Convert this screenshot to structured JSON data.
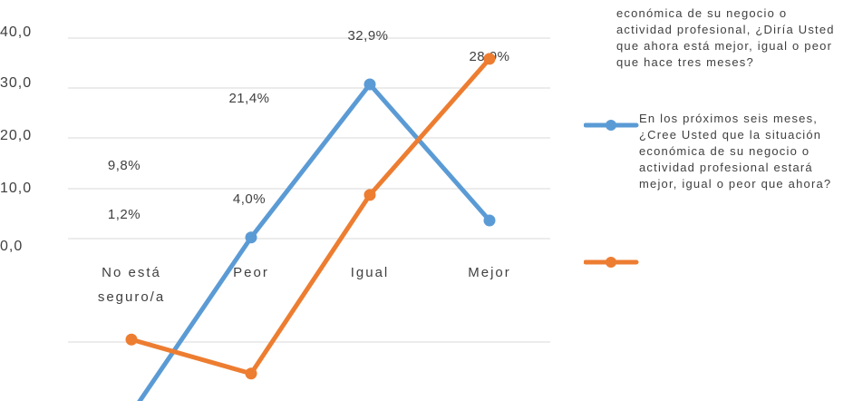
{
  "chart_data": {
    "type": "line",
    "categories": [
      "No está seguro/a",
      "Peor",
      "Igual",
      "Mejor"
    ],
    "category_lines": [
      [
        "No está",
        "seguro/a"
      ],
      [
        "Peor"
      ],
      [
        "Igual"
      ],
      [
        "Mejor"
      ]
    ],
    "y_ticks": [
      "40,0",
      "30,0",
      "20,0",
      "10,0",
      "0,0"
    ],
    "series": [
      {
        "values": [
          -30,
          1,
          28,
          4
        ],
        "color": "#5B9BD5"
      },
      {
        "values": [
          -17,
          -23,
          8.5,
          32.5
        ],
        "color": "#ED7D31"
      }
    ],
    "data_labels": [
      "9,8%",
      "1,2%",
      "21,4%",
      "4,0%",
      "32,9%",
      "28,9%"
    ],
    "legend": [
      {
        "text": "económica de su negocio o actividad profesional, ¿Diría Usted que ahora está mejor, igual o peor que hace tres meses?",
        "color": "#5B9BD5"
      },
      {
        "text": "En los próximos seis meses, ¿Cree Usted que la situación económica de su negocio o actividad profesional estará mejor, igual o peor que ahora?",
        "color": "#ED7D31"
      }
    ],
    "grid": true,
    "legend_position": "right"
  }
}
